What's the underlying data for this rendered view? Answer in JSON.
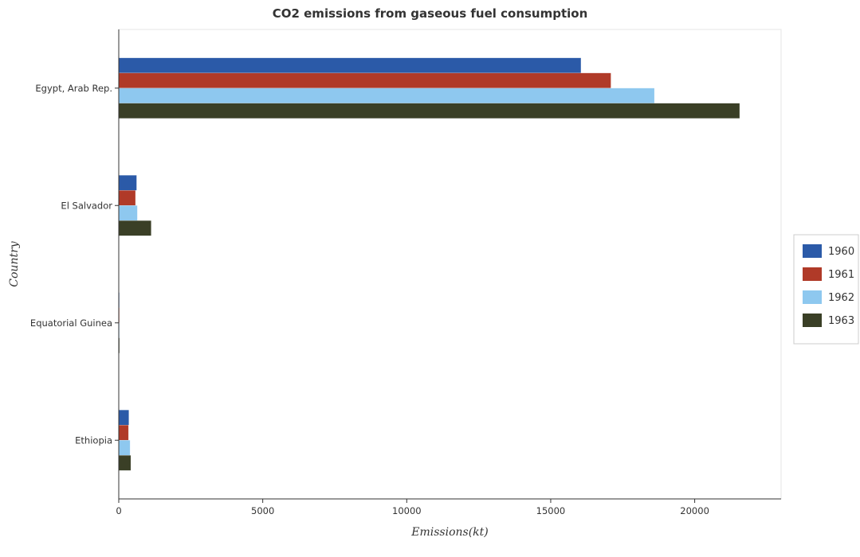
{
  "chart_data": {
    "type": "bar",
    "orientation": "horizontal",
    "title": "CO2 emissions from gaseous fuel consumption",
    "xlabel": "Emissions(kt)",
    "ylabel": "Country",
    "categories": [
      "Egypt, Arab Rep.",
      "El Salvador",
      "Equatorial Guinea",
      "Ethiopia"
    ],
    "series": [
      {
        "name": "1960",
        "color": "#2b5aa8",
        "values": [
          16050,
          620,
          22,
          350
        ]
      },
      {
        "name": "1961",
        "color": "#b03a28",
        "values": [
          17090,
          580,
          22,
          337
        ]
      },
      {
        "name": "1962",
        "color": "#8ec8ef",
        "values": [
          18600,
          645,
          22,
          392
        ]
      },
      {
        "name": "1963",
        "color": "#3a3f26",
        "values": [
          21560,
          1125,
          26,
          418
        ]
      }
    ],
    "xlim": [
      0,
      23000
    ],
    "xticks": [
      0,
      5000,
      10000,
      15000,
      20000
    ],
    "xtick_labels": [
      "0",
      "5000",
      "10000",
      "15000",
      "20000"
    ],
    "grid": false,
    "legend_position": "right"
  }
}
